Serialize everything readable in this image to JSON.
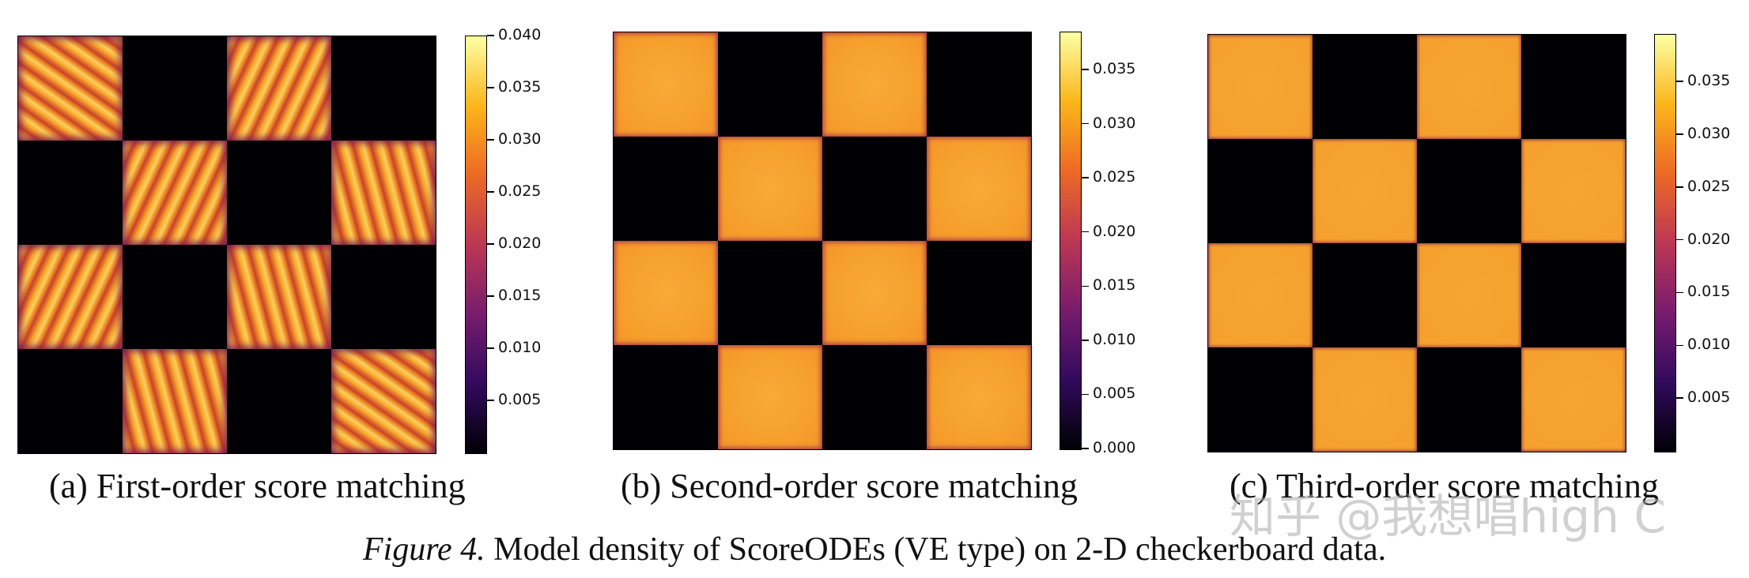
{
  "figure": {
    "label": "Figure 4.",
    "caption": "Model density of ScoreODEs (VE type) on 2-D checkerboard data.",
    "watermark": "知乎 @我想唱high C"
  },
  "colors": {
    "dark": "#000004",
    "high": "#f6a02c",
    "colormap": [
      "#000004",
      "#320a5e",
      "#781c6d",
      "#bb3754",
      "#ed6925",
      "#fbb61a",
      "#fcffa4"
    ]
  },
  "panels": [
    {
      "id": "a",
      "caption": "(a) First-order score matching",
      "colorbar": {
        "min": 0.0,
        "max": 0.04,
        "ticks": [
          "0.005",
          "0.010",
          "0.015",
          "0.020",
          "0.025",
          "0.030",
          "0.035",
          "0.040"
        ]
      },
      "texture": "streaky"
    },
    {
      "id": "b",
      "caption": "(b) Second-order score matching",
      "colorbar": {
        "min": 0.0,
        "max": 0.0385,
        "ticks": [
          "0.000",
          "0.005",
          "0.010",
          "0.015",
          "0.020",
          "0.025",
          "0.030",
          "0.035"
        ]
      },
      "texture": "mild"
    },
    {
      "id": "c",
      "caption": "(c) Third-order score matching",
      "colorbar": {
        "min": 0.0,
        "max": 0.0395,
        "ticks": [
          "0.005",
          "0.010",
          "0.015",
          "0.020",
          "0.025",
          "0.030",
          "0.035"
        ]
      },
      "texture": "smooth"
    }
  ],
  "chart_data": [
    {
      "type": "heatmap",
      "title": "(a) First-order score matching",
      "grid": [
        [
          1,
          0,
          1,
          0
        ],
        [
          0,
          1,
          0,
          1
        ],
        [
          1,
          0,
          1,
          0
        ],
        [
          0,
          1,
          0,
          1
        ]
      ],
      "colorbar_range": [
        0.0,
        0.04
      ],
      "colorbar_ticks": [
        0.005,
        0.01,
        0.015,
        0.02,
        0.025,
        0.03,
        0.035,
        0.04
      ]
    },
    {
      "type": "heatmap",
      "title": "(b) Second-order score matching",
      "grid": [
        [
          1,
          0,
          1,
          0
        ],
        [
          0,
          1,
          0,
          1
        ],
        [
          1,
          0,
          1,
          0
        ],
        [
          0,
          1,
          0,
          1
        ]
      ],
      "colorbar_range": [
        0.0,
        0.0385
      ],
      "colorbar_ticks": [
        0.0,
        0.005,
        0.01,
        0.015,
        0.02,
        0.025,
        0.03,
        0.035
      ]
    },
    {
      "type": "heatmap",
      "title": "(c) Third-order score matching",
      "grid": [
        [
          1,
          0,
          1,
          0
        ],
        [
          0,
          1,
          0,
          1
        ],
        [
          1,
          0,
          1,
          0
        ],
        [
          0,
          1,
          0,
          1
        ]
      ],
      "colorbar_range": [
        0.0,
        0.0395
      ],
      "colorbar_ticks": [
        0.005,
        0.01,
        0.015,
        0.02,
        0.025,
        0.03,
        0.035
      ]
    }
  ]
}
